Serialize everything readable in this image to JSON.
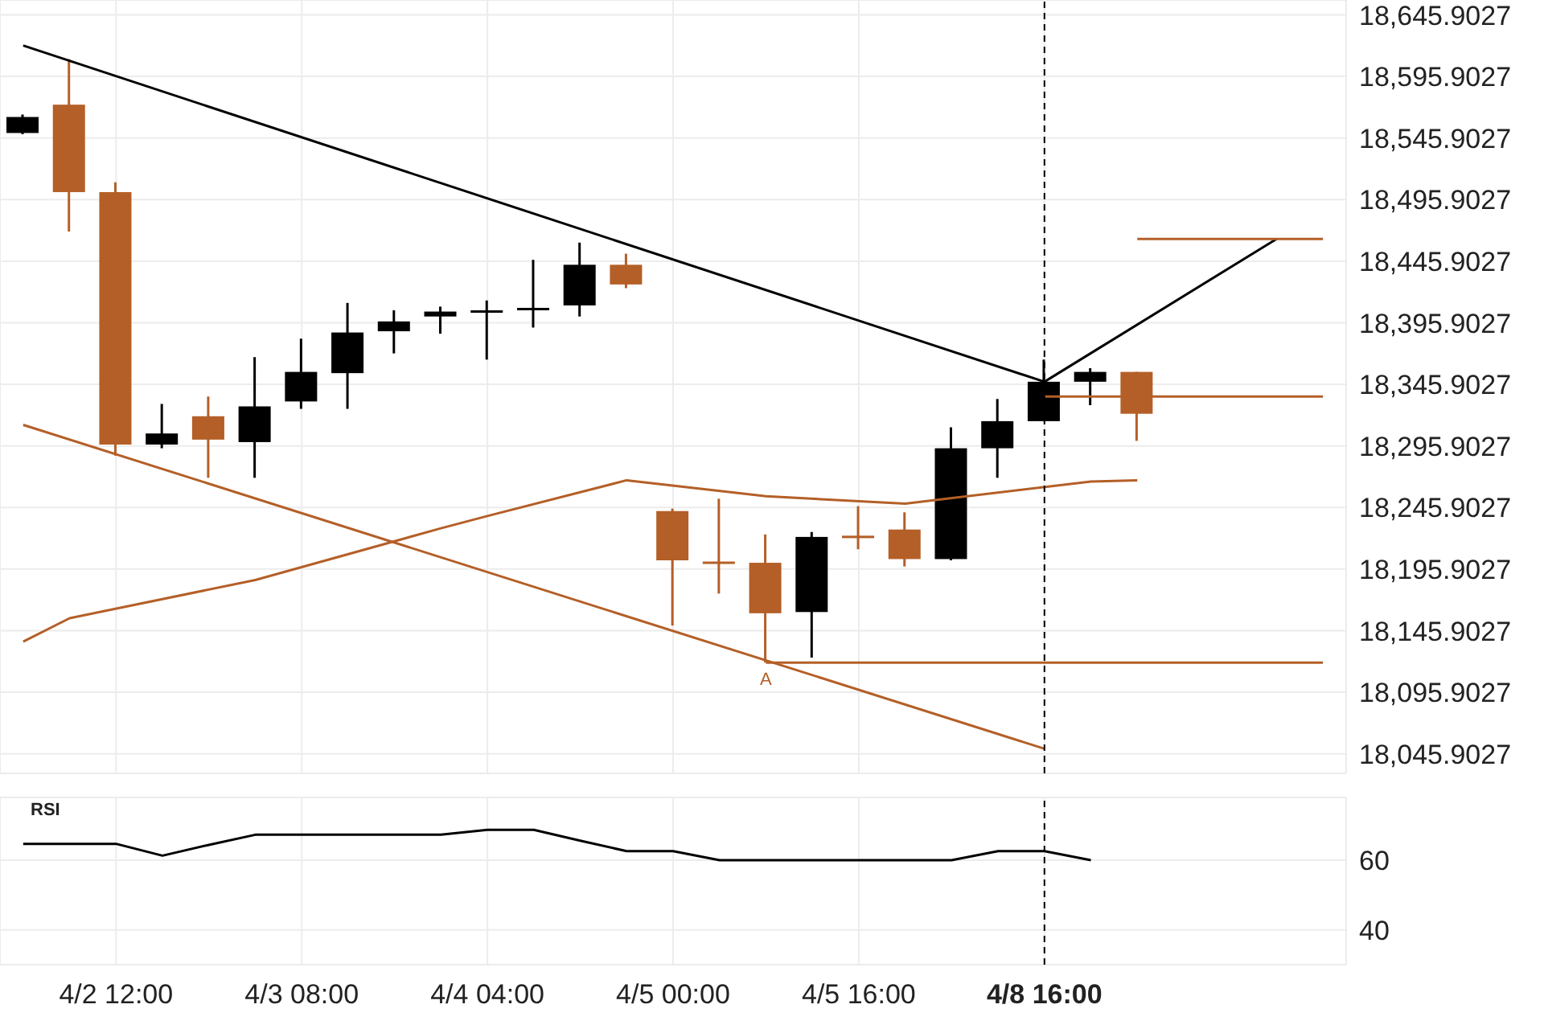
{
  "chart_data": [
    {
      "type": "candlestick",
      "categories": [
        null,
        null,
        "4/2 12:00",
        null,
        null,
        null,
        "4/3 08:00",
        null,
        null,
        null,
        "4/4 04:00",
        null,
        null,
        null,
        "4/5 00:00",
        null,
        null,
        null,
        "4/5 16:00",
        null,
        null,
        null,
        "4/8 16:00",
        null,
        null,
        null,
        null,
        null,
        null
      ],
      "ohlc": [
        [
          18550,
          18565,
          18549,
          18563
        ],
        [
          18573,
          18610,
          18470,
          18502
        ],
        [
          18502,
          18510,
          18288,
          18297
        ],
        [
          18297,
          18330,
          18294,
          18306
        ],
        [
          18320,
          18336,
          18270,
          18301
        ],
        [
          18299,
          18368,
          18270,
          18328
        ],
        [
          18332,
          18383,
          18326,
          18356
        ],
        [
          18355,
          18412,
          18326,
          18388
        ],
        [
          18389,
          18406,
          18371,
          18397
        ],
        [
          18401,
          18409,
          18387,
          18405
        ],
        [
          18406,
          18414,
          18366,
          18406
        ],
        [
          18408,
          18447,
          18392,
          18408
        ],
        [
          18410,
          18461,
          18401,
          18443
        ],
        [
          18443,
          18452,
          18424,
          18427
        ],
        [
          18243,
          18245,
          18150,
          18203
        ],
        [
          18202,
          18253,
          18176,
          18202
        ],
        [
          18201,
          18224,
          18120,
          18160
        ],
        [
          18161,
          18226,
          18124,
          18222
        ],
        [
          18223,
          18247,
          18212,
          18221
        ],
        [
          18228,
          18242,
          18198,
          18204
        ],
        [
          18204,
          18311,
          18203,
          18294
        ],
        [
          18294,
          18334,
          18270,
          18316
        ],
        [
          18316,
          18366,
          18316,
          18348
        ],
        [
          18348,
          18359,
          18329,
          18356
        ],
        [
          18356,
          18356,
          18300,
          18322
        ],
        null,
        null,
        null,
        null
      ],
      "colors": [
        "#000000",
        "#b45f27",
        "#b45f27",
        "#000000",
        "#b45f27",
        "#000000",
        "#000000",
        "#000000",
        "#000000",
        "#000000",
        "#000000",
        "#000000",
        "#000000",
        "#b45f27",
        "#b45f27",
        "#b45f27",
        "#b45f27",
        "#000000",
        "#b45f27",
        "#b45f27",
        "#000000",
        "#000000",
        "#000000",
        "#000000",
        "#b45f27",
        null,
        null,
        null,
        null
      ],
      "series": [
        {
          "type": "line",
          "color": "#000000",
          "values": [
            18621,
            null,
            null,
            null,
            null,
            null,
            null,
            null,
            null,
            null,
            null,
            null,
            null,
            null,
            null,
            null,
            null,
            null,
            null,
            null,
            null,
            null,
            18348,
            null,
            null,
            null,
            null,
            null,
            null
          ]
        },
        {
          "type": "line",
          "color": "#b45f27",
          "values": [
            18313,
            null,
            null,
            null,
            null,
            null,
            null,
            null,
            null,
            null,
            null,
            null,
            null,
            null,
            null,
            null,
            null,
            null,
            null,
            null,
            null,
            null,
            18050,
            null,
            null,
            null,
            null,
            null,
            null
          ]
        },
        {
          "type": "line",
          "color": "#b45f27",
          "values": [
            18137,
            18156,
            null,
            null,
            null,
            18187,
            null,
            null,
            null,
            18229,
            18239,
            null,
            null,
            18268,
            null,
            null,
            18255,
            null,
            null,
            18249,
            null,
            null,
            null,
            18267,
            18268,
            null,
            null,
            null,
            null
          ]
        },
        {
          "type": "line",
          "color": "#000000",
          "values": [
            null,
            null,
            null,
            null,
            null,
            null,
            null,
            null,
            null,
            null,
            null,
            null,
            null,
            null,
            null,
            null,
            null,
            null,
            null,
            null,
            null,
            null,
            18348,
            null,
            null,
            null,
            null,
            18464,
            null
          ]
        },
        {
          "type": "line",
          "color": "#b45f27",
          "values": [
            null,
            null,
            null,
            null,
            null,
            null,
            null,
            null,
            null,
            null,
            null,
            null,
            null,
            null,
            null,
            null,
            null,
            null,
            null,
            null,
            null,
            null,
            null,
            null,
            18464,
            null,
            null,
            null,
            18464
          ]
        },
        {
          "type": "line",
          "color": "#b45f27",
          "values": [
            null,
            null,
            null,
            null,
            null,
            null,
            null,
            null,
            null,
            null,
            null,
            null,
            null,
            null,
            null,
            null,
            null,
            null,
            null,
            null,
            null,
            null,
            18336,
            null,
            null,
            null,
            null,
            null,
            18336
          ]
        },
        {
          "type": "line",
          "name": "A",
          "color": "#b45f27",
          "values": [
            null,
            null,
            null,
            null,
            null,
            null,
            null,
            null,
            null,
            null,
            null,
            null,
            null,
            null,
            null,
            null,
            18120,
            null,
            null,
            null,
            null,
            null,
            null,
            null,
            null,
            null,
            null,
            null,
            18120
          ]
        }
      ],
      "ylim": [
        18030,
        18658
      ],
      "yticks": [
        {
          "value": 18045.9027,
          "label": "18,045.9027"
        },
        {
          "value": 18095.9027,
          "label": "18,095.9027"
        },
        {
          "value": 18145.9027,
          "label": "18,145.9027"
        },
        {
          "value": 18195.9027,
          "label": "18,195.9027"
        },
        {
          "value": 18245.9027,
          "label": "18,245.9027"
        },
        {
          "value": 18295.9027,
          "label": "18,295.9027"
        },
        {
          "value": 18345.9027,
          "label": "18,345.9027"
        },
        {
          "value": 18395.9027,
          "label": "18,395.9027"
        },
        {
          "value": 18445.9027,
          "label": "18,445.9027"
        },
        {
          "value": 18495.9027,
          "label": "18,495.9027"
        },
        {
          "value": 18545.9027,
          "label": "18,545.9027"
        },
        {
          "value": 18595.9027,
          "label": "18,595.9027"
        },
        {
          "value": 18645.9027,
          "label": "18,645.9027"
        }
      ],
      "ref_lines": [
        {
          "axis": "x",
          "value": "4/8 16:00",
          "color": "#000000",
          "line_style": "dashed"
        }
      ],
      "grid": true,
      "tick_labels": "y"
    },
    {
      "type": "line",
      "title": "RSI",
      "categories": [
        null,
        null,
        "4/2 12:00",
        null,
        null,
        null,
        "4/3 08:00",
        null,
        null,
        null,
        "4/4 04:00",
        null,
        null,
        null,
        "4/5 00:00",
        null,
        null,
        null,
        "4/5 16:00",
        null,
        null,
        null,
        "4/8 16:00",
        null,
        null,
        null,
        null,
        null,
        null
      ],
      "series": [
        {
          "color": "#000000",
          "values": [
            64.7,
            64.7,
            64.7,
            61.3,
            64.4,
            67.3,
            67.3,
            67.3,
            67.3,
            67.3,
            68.7,
            68.7,
            65.6,
            62.6,
            62.6,
            60,
            60,
            60,
            60,
            60,
            60,
            62.6,
            62.6,
            60,
            null,
            null,
            null,
            null,
            null
          ]
        }
      ],
      "ylim": [
        30,
        78
      ],
      "yticks": [
        40,
        60
      ],
      "ref_lines": [
        {
          "axis": "x",
          "value": "4/8 16:00",
          "color": "#000000",
          "line_style": "dashed"
        }
      ],
      "grid": true
    }
  ]
}
